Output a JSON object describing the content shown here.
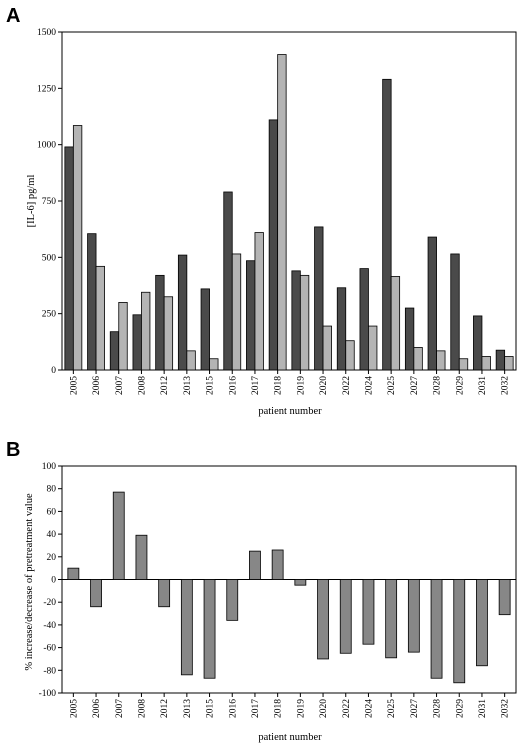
{
  "chart_data": [
    {
      "panel_label": "A",
      "type": "bar",
      "categories": [
        "2005",
        "2006",
        "2007",
        "2008",
        "2012",
        "2013",
        "2015",
        "2016",
        "2017",
        "2018",
        "2019",
        "2020",
        "2022",
        "2024",
        "2025",
        "2027",
        "2028",
        "2029",
        "2031",
        "2032"
      ],
      "series": [
        {
          "values": [
            990,
            605,
            170,
            245,
            420,
            510,
            360,
            790,
            485,
            1110,
            440,
            635,
            365,
            450,
            1290,
            275,
            590,
            515,
            240,
            88
          ],
          "color": "#4a4a4a"
        },
        {
          "values": [
            1085,
            460,
            300,
            345,
            325,
            85,
            50,
            515,
            610,
            1400,
            420,
            195,
            130,
            195,
            415,
            100,
            85,
            50,
            60,
            60
          ],
          "color": "#b4b4b4"
        }
      ],
      "xlabel": "patient number",
      "ylabel": "[IL-6] pg/ml",
      "ylim": [
        0,
        1500
      ],
      "yticks": [
        "0",
        "250",
        "500",
        "750",
        "1000",
        "1250",
        "1500"
      ],
      "grid": false
    },
    {
      "panel_label": "B",
      "type": "bar",
      "categories": [
        "2005",
        "2006",
        "2007",
        "2008",
        "2012",
        "2013",
        "2015",
        "2016",
        "2017",
        "2018",
        "2019",
        "2020",
        "2022",
        "2024",
        "2025",
        "2027",
        "2028",
        "2029",
        "2031",
        "2032"
      ],
      "values": [
        10,
        -24,
        77,
        39,
        -24,
        -84,
        -87,
        -36,
        25,
        26,
        -5,
        -70,
        -65,
        -57,
        -69,
        -64,
        -87,
        -91,
        -76,
        -31
      ],
      "color": "#878787",
      "xlabel": "patient number",
      "ylabel": "% increase/decrease of pretreatment value",
      "ylim": [
        -100,
        100
      ],
      "yticks": [
        "100",
        "80",
        "60",
        "40",
        "20",
        "0",
        "-20",
        "-40",
        "-60",
        "-80",
        "-100"
      ],
      "grid": false
    }
  ]
}
